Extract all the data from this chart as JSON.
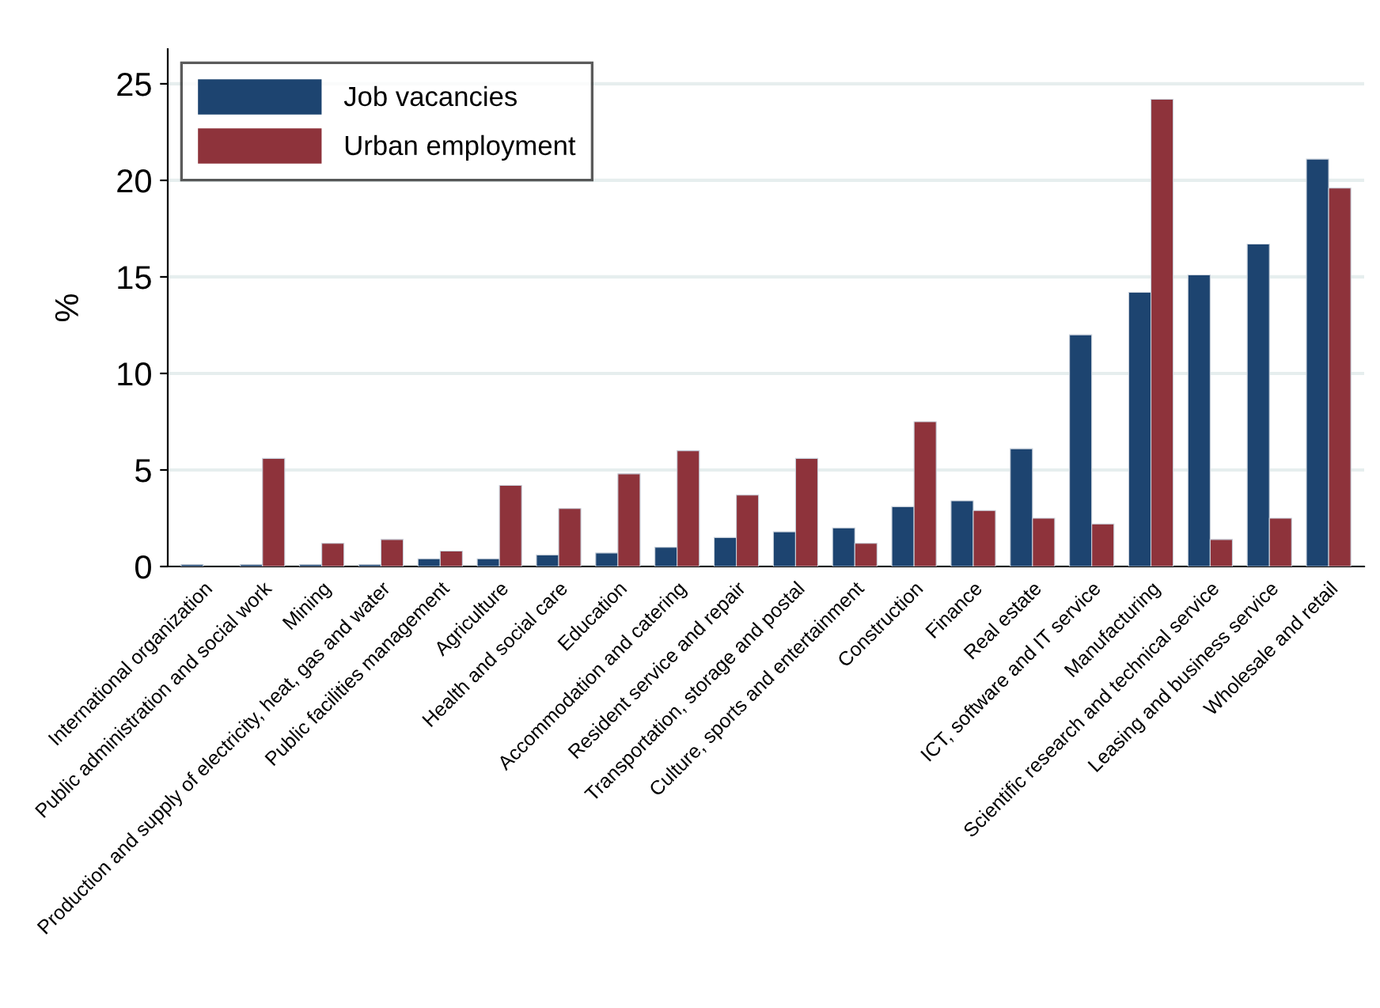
{
  "chart_data": {
    "type": "bar",
    "ylabel": "%",
    "categories": [
      "International organization",
      "Public administration and social work",
      "Mining",
      "Production and supply of electricity, heat, gas and water",
      "Public facilities management",
      "Agriculture",
      "Health and social care",
      "Education",
      "Accommodation and catering",
      "Resident service and repair",
      "Transportation, storage and postal",
      "Culture, sports and entertainment",
      "Construction",
      "Finance",
      "Real estate",
      "ICT, software and IT service",
      "Manufacturing",
      "Scientific research and technical service",
      "Leasing and business service",
      "Wholesale and retail"
    ],
    "series": [
      {
        "name": "Job vacancies",
        "color": "#1d4470",
        "values": [
          0.1,
          0.1,
          0.1,
          0.1,
          0.4,
          0.4,
          0.6,
          0.7,
          1.0,
          1.5,
          1.8,
          2.0,
          3.1,
          3.4,
          6.1,
          12.0,
          14.2,
          15.1,
          16.7,
          21.1
        ]
      },
      {
        "name": "Urban employment",
        "color": "#8e333b",
        "values": [
          null,
          5.6,
          1.2,
          1.4,
          0.8,
          4.2,
          3.0,
          4.8,
          6.0,
          3.7,
          5.6,
          1.2,
          7.5,
          2.9,
          2.5,
          2.2,
          24.2,
          1.4,
          2.5,
          19.6
        ]
      }
    ],
    "ylim": [
      0,
      26.8
    ],
    "yticks": [
      0,
      5,
      10,
      15,
      20,
      25
    ],
    "grid": "y",
    "legend": "top left"
  }
}
